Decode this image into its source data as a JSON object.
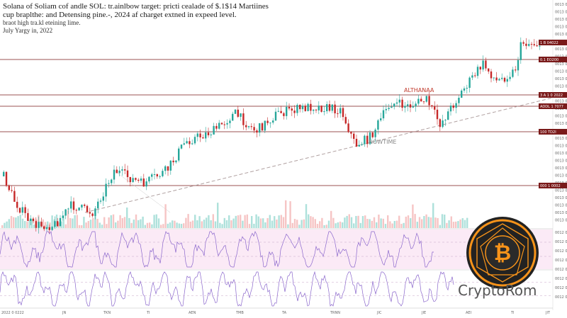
{
  "header": {
    "title_line1": "Solana of Soliam cof andle SOL: tr.ainlbow target: pricti cealade of $.1$14 Martiines",
    "title_line2": "cup braplthe: and Detensing pine.-, 2024 af charget extned in expeed level.",
    "subtitle_line1": "braot high tra.kl eteining lime.",
    "subtitle_line2": "July Yargy in, 2022"
  },
  "logo": {
    "text": "CryptoRom",
    "icon": "bitcoin-coin-icon",
    "accent": "#f7931a"
  },
  "colors": {
    "up": "#26a69a",
    "down": "#c62828",
    "level": "#7a1a1a",
    "osc": "#8a66cc",
    "trend": "#b0a0a0"
  },
  "chart_data": {
    "type": "candlestick",
    "annotations": [
      {
        "text": "ALTHANAA",
        "color": "#c0392b"
      },
      {
        "text": "NOWTIME",
        "color": "#888888"
      }
    ],
    "x_tick_labels": [
      "2022 0 0222",
      "JN",
      "TKN",
      "TI",
      "AEN",
      "TMB",
      "TA",
      "TRNN",
      "JIC",
      "JIE",
      "AEI",
      "TI",
      "JIT"
    ],
    "level_tags": [
      "1 B 04022",
      "0.1 EO200",
      "3 A 1 0 2022",
      "ADDL 1 7077",
      "100 TD2I",
      "000 1 0002"
    ],
    "rsi_range": [
      0,
      100
    ],
    "stoch_range": [
      0,
      100
    ],
    "legend": "none",
    "grid": false
  }
}
